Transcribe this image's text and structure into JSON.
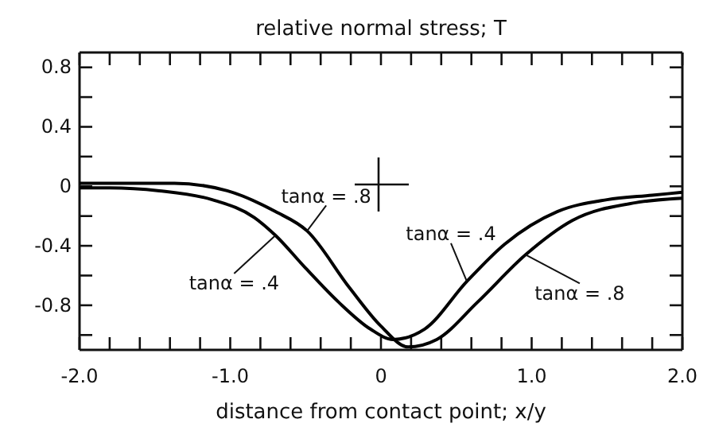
{
  "chart_data": {
    "type": "line",
    "title": "relative normal stress; T",
    "xlabel": "distance from contact point; x/y",
    "xlim": [
      -2,
      2
    ],
    "ylim": [
      -1.1,
      0.9
    ],
    "xticks": [
      {
        "value": -2,
        "label": "-2.0"
      },
      {
        "value": -1.8,
        "label": null
      },
      {
        "value": -1.6,
        "label": null
      },
      {
        "value": -1.4,
        "label": null
      },
      {
        "value": -1.2,
        "label": null
      },
      {
        "value": -1,
        "label": "-1.0"
      },
      {
        "value": -0.8,
        "label": null
      },
      {
        "value": -0.6,
        "label": null
      },
      {
        "value": -0.4,
        "label": null
      },
      {
        "value": -0.2,
        "label": null
      },
      0,
      {
        "value": 0.2,
        "label": null
      },
      {
        "value": 0.4,
        "label": null
      },
      {
        "value": 0.6,
        "label": null
      },
      {
        "value": 0.8,
        "label": null
      },
      {
        "value": 1,
        "label": "1.0"
      },
      {
        "value": 1.2,
        "label": null
      },
      {
        "value": 1.4,
        "label": null
      },
      {
        "value": 1.6,
        "label": null
      },
      {
        "value": 1.8,
        "label": null
      },
      {
        "value": 2,
        "label": "2.0"
      }
    ],
    "yticks": [
      {
        "value": -1,
        "label": null
      },
      -0.8,
      {
        "value": -0.6,
        "label": null
      },
      -0.4,
      {
        "value": -0.2,
        "label": null
      },
      0,
      {
        "value": 0.2,
        "label": null
      },
      0.4,
      {
        "value": 0.6,
        "label": null
      },
      0.8
    ],
    "grid": false,
    "marker": "none",
    "line_style": "solid",
    "series": [
      {
        "color": "#000000",
        "x": [
          -2,
          -1.8,
          -1.47,
          -1.12,
          -0.84,
          -0.7,
          -0.5,
          -0.28,
          -0.07,
          0.08,
          0.29,
          0.57,
          0.82,
          1.17,
          1.5,
          1.8,
          2
        ],
        "values": [
          -0.01,
          -0.01,
          -0.03,
          -0.09,
          -0.21,
          -0.33,
          -0.55,
          -0.78,
          -0.96,
          -1.03,
          -0.96,
          -0.64,
          -0.39,
          -0.17,
          -0.09,
          -0.06,
          -0.04
        ]
      },
      {
        "color": "#000000",
        "x": [
          -2,
          -1.7,
          -1.37,
          -1.02,
          -0.7,
          -0.49,
          -0.21,
          0,
          0.18,
          0.37,
          0.64,
          0.96,
          1.27,
          1.69,
          2
        ],
        "values": [
          0.02,
          0.02,
          0.02,
          -0.03,
          -0.17,
          -0.3,
          -0.68,
          -0.94,
          -1.08,
          -1.03,
          -0.78,
          -0.46,
          -0.23,
          -0.11,
          -0.08
        ]
      }
    ],
    "annotations": [
      {
        "text": "tanα = .8",
        "x": -0.49,
        "y": -0.3
      },
      {
        "text": "tanα = .4",
        "x": -0.7,
        "y": -0.33
      },
      {
        "text": "tanα = .4",
        "x": 0.57,
        "y": -0.64
      },
      {
        "text": "tanα = .8",
        "x": 0.96,
        "y": -0.46
      }
    ]
  }
}
